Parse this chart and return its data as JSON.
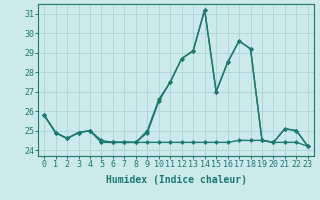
{
  "xlabel": "Humidex (Indice chaleur)",
  "background_color": "#cce9ec",
  "line_color": "#1a7a6e",
  "grid_color": "#aad4d8",
  "x": [
    0,
    1,
    2,
    3,
    4,
    5,
    6,
    7,
    8,
    9,
    10,
    11,
    12,
    13,
    14,
    15,
    16,
    17,
    18,
    19,
    20,
    21,
    22,
    23
  ],
  "series": [
    [
      25.8,
      24.9,
      24.6,
      24.9,
      25.0,
      24.5,
      24.4,
      24.4,
      24.4,
      24.9,
      26.5,
      27.5,
      28.7,
      29.1,
      31.2,
      27.0,
      28.5,
      29.6,
      29.2,
      24.5,
      24.4,
      25.1,
      25.0,
      24.2
    ],
    [
      25.8,
      24.9,
      24.6,
      24.9,
      25.0,
      24.4,
      24.4,
      24.4,
      24.4,
      25.0,
      26.6,
      27.5,
      28.7,
      29.1,
      31.2,
      27.0,
      28.5,
      29.6,
      29.2,
      24.5,
      24.4,
      25.1,
      25.0,
      24.2
    ],
    [
      25.8,
      24.9,
      24.6,
      24.9,
      25.0,
      24.4,
      24.4,
      24.4,
      24.4,
      24.4,
      24.4,
      24.4,
      24.4,
      24.4,
      24.4,
      24.4,
      24.4,
      24.5,
      24.5,
      24.5,
      24.4,
      24.4,
      24.4,
      24.2
    ]
  ],
  "ylim": [
    23.7,
    31.5
  ],
  "yticks": [
    24,
    25,
    26,
    27,
    28,
    29,
    30,
    31
  ],
  "xlim": [
    -0.5,
    23.5
  ],
  "marker": "D",
  "markersize": 2.0,
  "linewidth": 1.0,
  "tick_fontsize": 6.0,
  "xlabel_fontsize": 7.0
}
